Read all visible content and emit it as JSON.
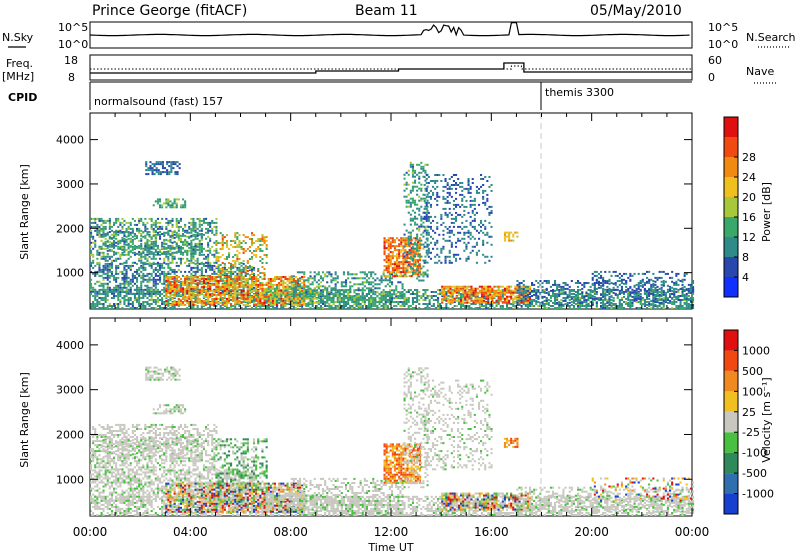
{
  "header": {
    "station": "Prince George (fitACF)",
    "beam": "Beam 11",
    "date": "05/May/2010"
  },
  "strip_panels": {
    "nsky_label": "N.Sky",
    "nsky_ticks": [
      "10^5",
      "10^0"
    ],
    "nsearch_label": "N.Search",
    "nsearch_ticks": [
      "10^5",
      "10^0"
    ],
    "freq_label": "Freq.",
    "freq_unit": "[MHz]",
    "freq_ticks": [
      "18",
      "8"
    ],
    "nave_label": "Nave",
    "nave_ticks": [
      "60",
      "0"
    ],
    "cpid_label": "CPID",
    "cpid_segments": [
      {
        "name": "normalsound (fast) 157",
        "start_hour": 0,
        "end_hour": 18
      },
      {
        "name": "themis 3300",
        "start_hour": 18,
        "end_hour": 24
      }
    ]
  },
  "chart_data": [
    {
      "type": "heatmap",
      "title": "",
      "quantity": "Power",
      "ylabel": "Slant Range [km]",
      "xlabel": "Time UT",
      "x_ticks": [
        "00:00",
        "04:00",
        "08:00",
        "12:00",
        "16:00",
        "20:00",
        "00:00"
      ],
      "x_range_hours": [
        0,
        24
      ],
      "y_ticks": [
        1000,
        2000,
        3000,
        4000
      ],
      "ylim": [
        180,
        4600
      ],
      "colorbar": {
        "label": "Power [dB]",
        "ticks": [
          "4",
          "8",
          "12",
          "16",
          "20",
          "24",
          "28"
        ],
        "colors": [
          "#1030ff",
          "#2848b0",
          "#2f8a8a",
          "#3aa86a",
          "#a8c83c",
          "#f0c020",
          "#f08a10",
          "#f04a10",
          "#e01010"
        ],
        "range": [
          0,
          30
        ]
      }
    },
    {
      "type": "heatmap",
      "title": "",
      "quantity": "Velocity",
      "ylabel": "Slant Range [km]",
      "xlabel": "Time UT",
      "x_ticks": [
        "00:00",
        "04:00",
        "08:00",
        "12:00",
        "16:00",
        "20:00",
        "00:00"
      ],
      "x_range_hours": [
        0,
        24
      ],
      "y_ticks": [
        1000,
        2000,
        3000,
        4000
      ],
      "ylim": [
        180,
        4600
      ],
      "colorbar": {
        "label": "Velocity [m s⁻¹]",
        "ticks": [
          "1000",
          "500",
          "100",
          "25",
          "-25",
          "-100",
          "-500",
          "-1000"
        ],
        "colors": [
          "#1840d0",
          "#2f6fb0",
          "#2f8a5a",
          "#49c040",
          "#c8c8c0",
          "#f0c020",
          "#f08a20",
          "#f04810",
          "#e01010"
        ]
      }
    }
  ],
  "colors": {
    "ground_scatter": "#c8c8c0",
    "axis": "#000000",
    "dashed_marker": "#c8c8c8"
  }
}
